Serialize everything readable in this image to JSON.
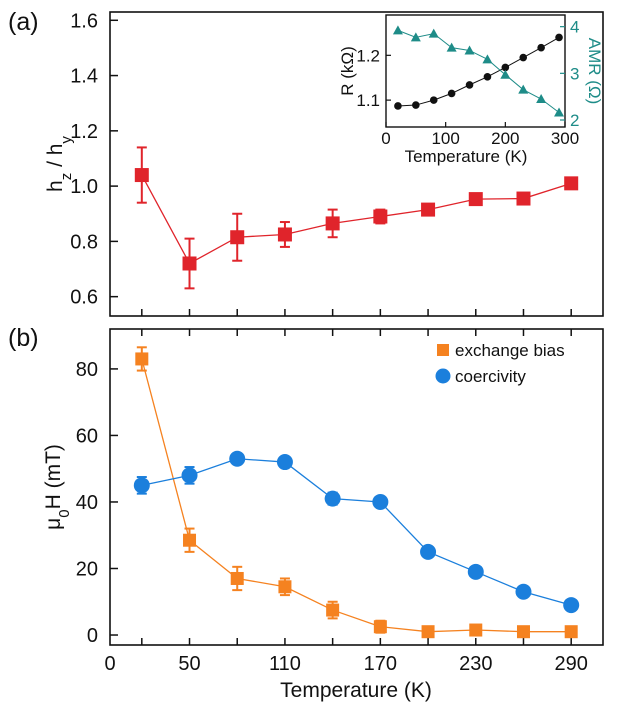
{
  "colors": {
    "ratio": "#e0242b",
    "exchange_bias": "#f58220",
    "coercivity": "#1b7fdc",
    "resistance": "#111111",
    "amr": "#1e8c88",
    "axis": "#111111"
  },
  "chart_data": [
    {
      "id": "panel-a",
      "type": "line",
      "panel_label": "(a)",
      "ylabel": "h_z / h_y",
      "ylim": [
        0.53,
        1.63
      ],
      "yticks": [
        0.6,
        0.8,
        1.0,
        1.2,
        1.4,
        1.6
      ],
      "ytick_labels": [
        "0.6",
        "0.8",
        "1.0",
        "1.2",
        "1.4",
        "1.6"
      ],
      "xlim": [
        0,
        310
      ],
      "xticks": [
        20,
        50,
        80,
        110,
        140,
        170,
        200,
        230,
        260,
        290
      ],
      "grid": false,
      "series": [
        {
          "key": "ratio",
          "marker": "square",
          "x": [
            20,
            50,
            80,
            110,
            140,
            170,
            200,
            230,
            260,
            290
          ],
          "y": [
            1.04,
            0.72,
            0.815,
            0.825,
            0.865,
            0.89,
            0.915,
            0.953,
            0.955,
            1.01
          ],
          "err": [
            0.1,
            0.09,
            0.085,
            0.045,
            0.05,
            0.025,
            0.02,
            0.015,
            0.012,
            0.012
          ]
        }
      ]
    },
    {
      "id": "panel-a-inset",
      "type": "line",
      "xlabel": "Temperature (K)",
      "ylabel": "R (kΩ)",
      "y2label": "AMR (Ω)",
      "xlim": [
        0,
        300
      ],
      "xticks": [
        0,
        100,
        200,
        300
      ],
      "xtick_labels": [
        "0",
        "100",
        "200",
        "300"
      ],
      "ylim": [
        1.04,
        1.29
      ],
      "yticks": [
        1.1,
        1.2
      ],
      "ytick_labels": [
        "1.1",
        "1.2"
      ],
      "y2lim": [
        1.85,
        4.25
      ],
      "y2ticks": [
        2,
        3,
        4
      ],
      "y2tick_labels": [
        "2",
        "3",
        "4"
      ],
      "series": [
        {
          "key": "resistance",
          "marker": "circle",
          "axis": "left",
          "x": [
            20,
            50,
            80,
            110,
            140,
            170,
            200,
            230,
            260,
            290
          ],
          "y": [
            1.087,
            1.089,
            1.1,
            1.115,
            1.134,
            1.152,
            1.173,
            1.195,
            1.217,
            1.24
          ]
        },
        {
          "key": "amr",
          "marker": "triangle",
          "axis": "right",
          "x": [
            20,
            50,
            80,
            110,
            140,
            170,
            200,
            230,
            260,
            290
          ],
          "y": [
            3.92,
            3.77,
            3.85,
            3.55,
            3.49,
            3.3,
            2.97,
            2.65,
            2.45,
            2.16
          ]
        }
      ]
    },
    {
      "id": "panel-b",
      "type": "line",
      "panel_label": "(b)",
      "xlabel": "Temperature (K)",
      "ylabel": "μ0H (mT)",
      "xlim": [
        0,
        310
      ],
      "xticks": [
        0,
        50,
        110,
        170,
        230,
        290
      ],
      "xtick_labels": [
        "0",
        "50",
        "110",
        "170",
        "230",
        "290"
      ],
      "xminor": [
        20,
        50,
        80,
        110,
        140,
        170,
        200,
        230,
        260,
        290
      ],
      "ylim": [
        -3,
        92
      ],
      "yticks": [
        0,
        20,
        40,
        60,
        80
      ],
      "ytick_labels": [
        "0",
        "20",
        "40",
        "60",
        "80"
      ],
      "legend_position": "top-right",
      "grid": false,
      "series": [
        {
          "key": "exchange_bias",
          "name": "exchange bias",
          "marker": "square",
          "x": [
            20,
            50,
            80,
            110,
            140,
            170,
            200,
            230,
            260,
            290
          ],
          "y": [
            83,
            28.5,
            17,
            14.5,
            7.5,
            2.5,
            1,
            1.5,
            1,
            1
          ],
          "err": [
            3.5,
            3.5,
            3.5,
            2.5,
            2.5,
            1.8,
            0.8,
            0.8,
            0.6,
            0.6
          ]
        },
        {
          "key": "coercivity",
          "name": "coercivity",
          "marker": "circle",
          "x": [
            20,
            50,
            80,
            110,
            140,
            170,
            200,
            230,
            260,
            290
          ],
          "y": [
            45,
            48,
            53,
            52,
            41,
            40,
            25,
            19,
            13,
            9
          ],
          "err": [
            2.5,
            2.5,
            1.2,
            1.2,
            1.8,
            1.2,
            1,
            1,
            1,
            1
          ]
        }
      ]
    }
  ]
}
